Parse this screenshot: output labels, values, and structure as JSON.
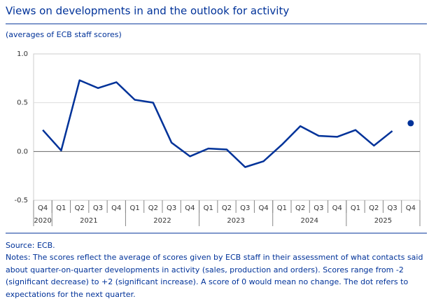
{
  "chart_data": {
    "type": "line",
    "title": "Views on developments in and the outlook for activity",
    "subtitle": "(averages of ECB staff scores)",
    "categories": [
      "Q4",
      "Q1",
      "Q2",
      "Q3",
      "Q4",
      "Q1",
      "Q2",
      "Q3",
      "Q4",
      "Q1",
      "Q2",
      "Q3",
      "Q4",
      "Q1",
      "Q2",
      "Q3",
      "Q4",
      "Q1",
      "Q2",
      "Q3",
      "Q4"
    ],
    "category_years": [
      "2020",
      "2021",
      "2021",
      "2021",
      "2021",
      "2022",
      "2022",
      "2022",
      "2022",
      "2023",
      "2023",
      "2023",
      "2023",
      "2024",
      "2024",
      "2024",
      "2024",
      "2025",
      "2025",
      "2025",
      "2025"
    ],
    "series": [
      {
        "color": "#003299",
        "style": "line",
        "values": [
          0.22,
          0.01,
          0.73,
          0.65,
          0.71,
          0.53,
          0.5,
          0.09,
          -0.05,
          0.03,
          0.02,
          -0.16,
          -0.1,
          0.07,
          0.26,
          0.16,
          0.15,
          0.22,
          0.06,
          0.21,
          null
        ]
      },
      {
        "color": "#003299",
        "style": "marker",
        "values": [
          null,
          null,
          null,
          null,
          null,
          null,
          null,
          null,
          null,
          null,
          null,
          null,
          null,
          null,
          null,
          null,
          null,
          null,
          null,
          null,
          0.29
        ]
      }
    ],
    "ylim": [
      -0.5,
      1.0
    ],
    "yticks": [
      {
        "value": -0.5,
        "label": "-0.5"
      },
      {
        "value": 0,
        "label": "0.0"
      },
      {
        "value": 0.5,
        "label": "0.5"
      },
      {
        "value": 1,
        "label": "1.0"
      }
    ],
    "source": "Source: ECB.",
    "notes": "Notes: The scores reflect the average of scores given by ECB staff in their assessment of what contacts said about quarter-on-quarter developments in activity (sales, production and orders). Scores range from -2 (significant decrease) to +2 (significant increase). A score of 0 would mean no change. The dot refers to expectations for the next quarter."
  }
}
